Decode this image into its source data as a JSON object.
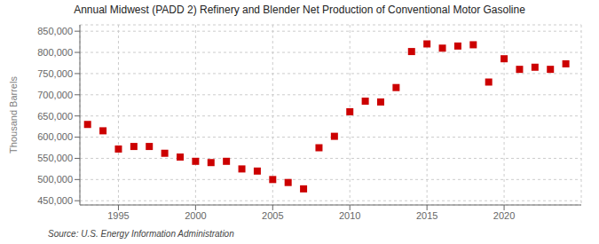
{
  "chart_data": {
    "type": "scatter",
    "title": "Annual Midwest (PADD 2) Refinery and Blender Net Production of Conventional Motor Gasoline",
    "ylabel": "Thousand Barrels",
    "source": "Source: U.S. Energy Information Administration",
    "x": [
      1993,
      1994,
      1995,
      1996,
      1997,
      1998,
      1999,
      2000,
      2001,
      2002,
      2003,
      2004,
      2005,
      2006,
      2007,
      2008,
      2009,
      2010,
      2011,
      2012,
      2013,
      2014,
      2015,
      2016,
      2017,
      2018,
      2019,
      2020,
      2021,
      2022,
      2023,
      2024
    ],
    "values": [
      630000,
      615000,
      572000,
      578000,
      578000,
      562000,
      553000,
      543000,
      540000,
      543000,
      525000,
      520000,
      500000,
      493000,
      478000,
      575000,
      602000,
      660000,
      685000,
      683000,
      717000,
      802000,
      820000,
      810000,
      815000,
      818000,
      730000,
      785000,
      760000,
      765000,
      760000,
      773000
    ],
    "color": "#cc0000",
    "marker": "square",
    "xlim": [
      1992.5,
      2025
    ],
    "xticks": [
      1995,
      2000,
      2005,
      2010,
      2015,
      2020
    ],
    "ylim": [
      440000,
      865000
    ],
    "yticks": [
      {
        "value": 450000,
        "label": "450,000"
      },
      {
        "value": 500000,
        "label": "500,000"
      },
      {
        "value": 550000,
        "label": "550,000"
      },
      {
        "value": 600000,
        "label": "600,000"
      },
      {
        "value": 650000,
        "label": "650,000"
      },
      {
        "value": 700000,
        "label": "700,000"
      },
      {
        "value": 750000,
        "label": "750,000"
      },
      {
        "value": 800000,
        "label": "800,000"
      },
      {
        "value": 850000,
        "label": "850,000"
      }
    ],
    "grid": true
  }
}
